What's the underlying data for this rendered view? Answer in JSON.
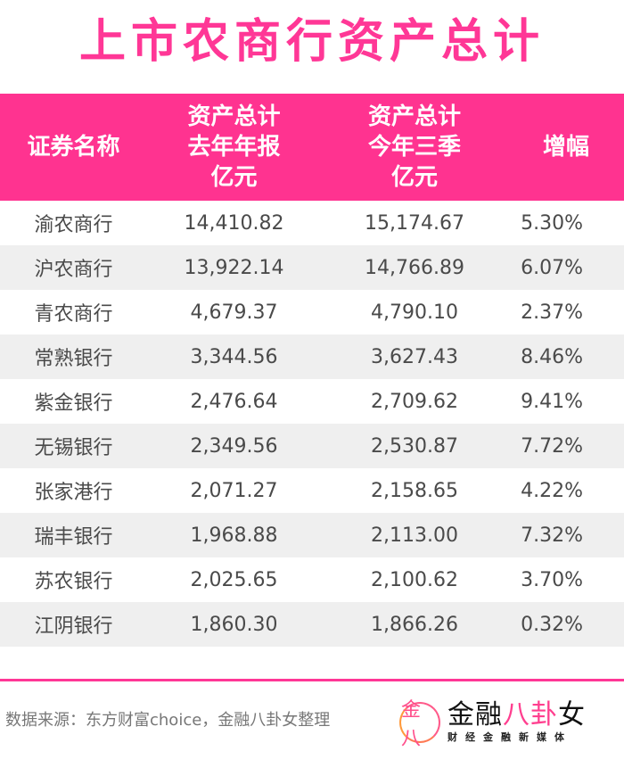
{
  "title": "上市农商行资产总计",
  "table": {
    "headers": [
      [
        "证券名称"
      ],
      [
        "资产总计",
        "去年年报",
        "亿元"
      ],
      [
        "资产总计",
        "今年三季",
        "亿元"
      ],
      [
        "增幅"
      ]
    ],
    "rows": [
      {
        "name": "渝农商行",
        "last_year": "14,410.82",
        "q3": "15,174.67",
        "growth": "5.30%"
      },
      {
        "name": "沪农商行",
        "last_year": "13,922.14",
        "q3": "14,766.89",
        "growth": "6.07%"
      },
      {
        "name": "青农商行",
        "last_year": "4,679.37",
        "q3": "4,790.10",
        "growth": "2.37%"
      },
      {
        "name": "常熟银行",
        "last_year": "3,344.56",
        "q3": "3,627.43",
        "growth": "8.46%"
      },
      {
        "name": "紫金银行",
        "last_year": "2,476.64",
        "q3": "2,709.62",
        "growth": "9.41%"
      },
      {
        "name": "无锡银行",
        "last_year": "2,349.56",
        "q3": "2,530.87",
        "growth": "7.72%"
      },
      {
        "name": "张家港行",
        "last_year": "2,071.27",
        "q3": "2,158.65",
        "growth": "4.22%"
      },
      {
        "name": "瑞丰银行",
        "last_year": "1,968.88",
        "q3": "2,113.00",
        "growth": "7.32%"
      },
      {
        "name": "苏农银行",
        "last_year": "2,025.65",
        "q3": "2,100.62",
        "growth": "3.70%"
      },
      {
        "name": "江阴银行",
        "last_year": "1,860.30",
        "q3": "1,866.26",
        "growth": "0.32%"
      }
    ]
  },
  "footer": {
    "source": "数据来源：东方财富choice，金融八卦女整理",
    "logo_circle": "金八",
    "logo_main_black": "金融",
    "logo_main_pink": "八卦",
    "logo_main_black2": "女",
    "logo_sub": "财经金融新媒体"
  },
  "colors": {
    "accent": "#ff3796",
    "header_bg": "#ff3390",
    "alt_row": "#efefef",
    "text": "#4a4a4a"
  },
  "chart_data": {
    "type": "table",
    "title": "上市农商行资产总计",
    "columns": [
      "证券名称",
      "资产总计 去年年报 亿元",
      "资产总计 今年三季 亿元",
      "增幅"
    ],
    "categories": [
      "渝农商行",
      "沪农商行",
      "青农商行",
      "常熟银行",
      "紫金银行",
      "无锡银行",
      "张家港行",
      "瑞丰银行",
      "苏农银行",
      "江阴银行"
    ],
    "series": [
      {
        "name": "资产总计 去年年报 亿元",
        "values": [
          14410.82,
          13922.14,
          4679.37,
          3344.56,
          2476.64,
          2349.56,
          2071.27,
          1968.88,
          2025.65,
          1860.3
        ]
      },
      {
        "name": "资产总计 今年三季 亿元",
        "values": [
          15174.67,
          14766.89,
          4790.1,
          3627.43,
          2709.62,
          2530.87,
          2158.65,
          2113.0,
          2100.62,
          1866.26
        ]
      },
      {
        "name": "增幅 (%)",
        "values": [
          5.3,
          6.07,
          2.37,
          8.46,
          9.41,
          7.72,
          4.22,
          7.32,
          3.7,
          0.32
        ]
      }
    ],
    "source": "数据来源：东方财富choice，金融八卦女整理"
  }
}
